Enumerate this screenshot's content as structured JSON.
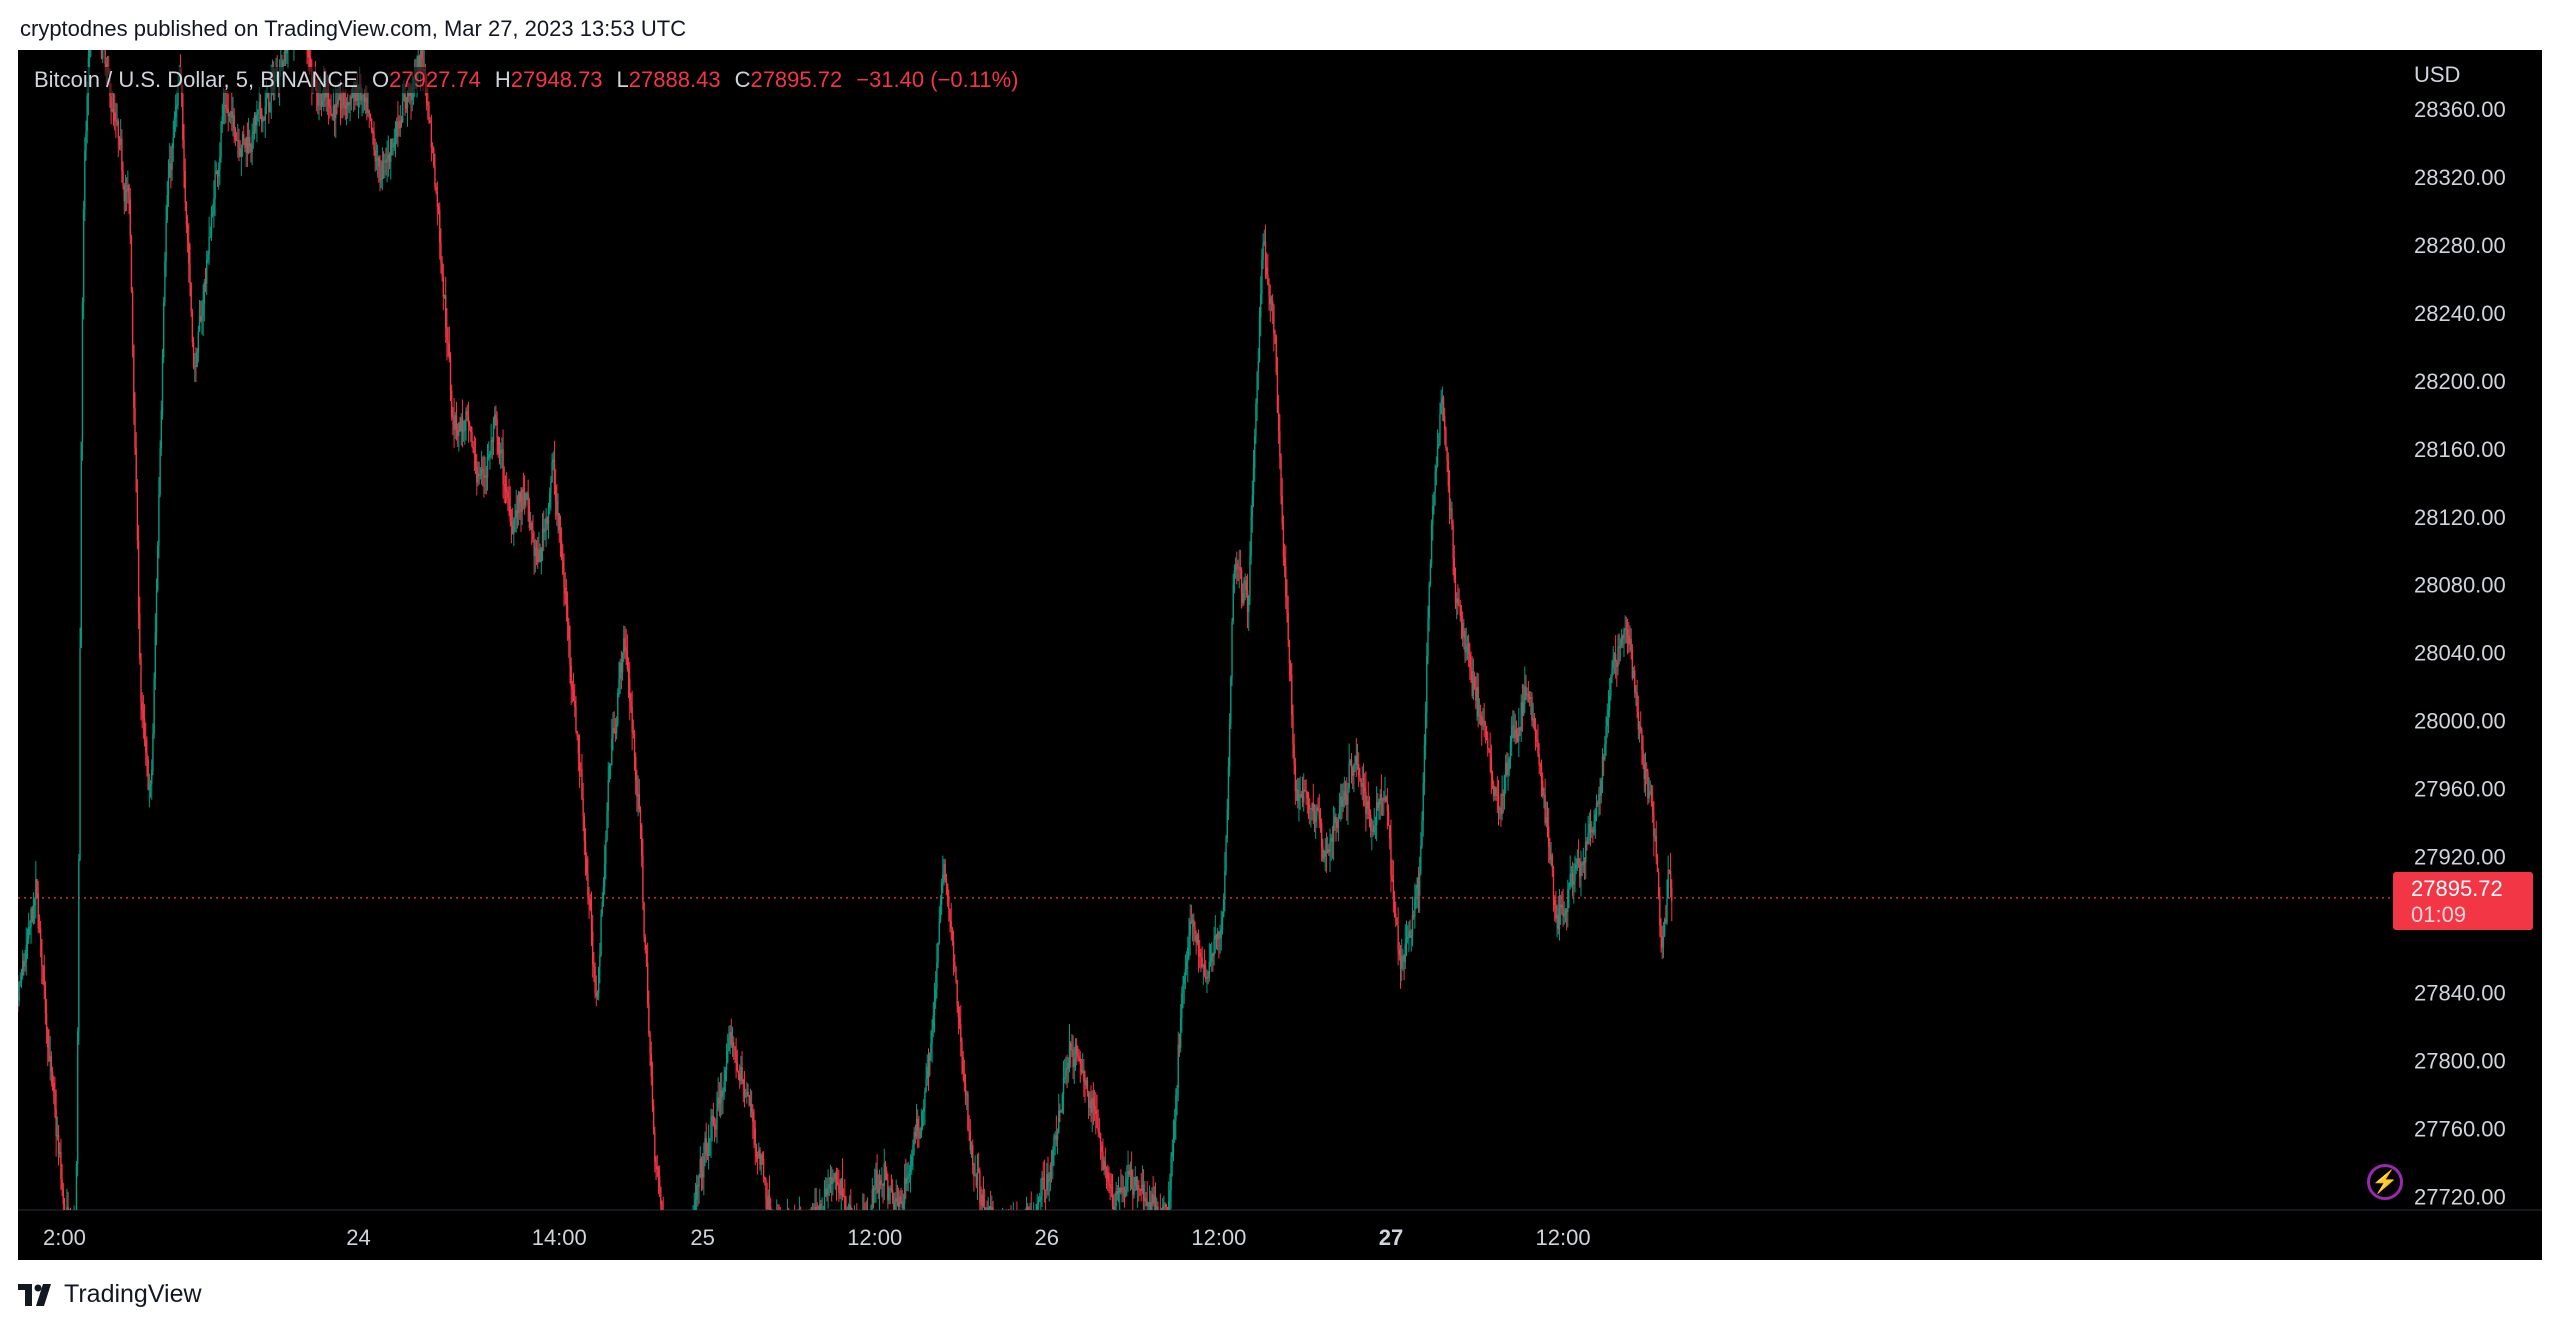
{
  "publisher": "cryptodnes published on TradingView.com, Mar 27, 2023 13:53 UTC",
  "legend": {
    "symbol": "Bitcoin / U.S. Dollar, 5, BINANCE",
    "o_label": "O",
    "o_value": "27927.74",
    "h_label": "H",
    "h_value": "27948.73",
    "l_label": "L",
    "l_value": "27888.43",
    "c_label": "C",
    "c_value": "27895.72",
    "change": "−31.40 (−0.11%)"
  },
  "axis": {
    "currency": "USD"
  },
  "last_price": {
    "value": "27895.72",
    "countdown": "01:09"
  },
  "brand": "TradingView",
  "colors": {
    "up": "#089981",
    "down": "#f23645",
    "background": "#000000",
    "text": "#d1d4dc"
  },
  "chart_data": {
    "type": "candlestick",
    "interval_minutes": 5,
    "y_axis": {
      "ticks": [
        28360,
        28320,
        28280,
        28240,
        28200,
        28160,
        28120,
        28080,
        28040,
        28000,
        27960,
        27920,
        27840,
        27800,
        27760,
        27720
      ],
      "ylim": [
        27712,
        28390
      ],
      "tick_labels": [
        "28360.00",
        "28320.00",
        "28280.00",
        "28240.00",
        "28200.00",
        "28160.00",
        "28120.00",
        "28080.00",
        "28040.00",
        "28000.00",
        "27960.00",
        "27920.00",
        "27840.00",
        "27800.00",
        "27760.00",
        "27720.00"
      ]
    },
    "x_axis": {
      "tick_labels": [
        "2:00",
        "24",
        "14:00",
        "25",
        "12:00",
        "26",
        "12:00",
        "27",
        "12:00"
      ],
      "tick_hours": [
        2,
        24,
        38,
        48,
        60,
        72,
        84,
        96,
        108
      ]
    },
    "last_price": 27895.72,
    "series": [
      {
        "t": -0.5,
        "p": 27800
      },
      {
        "t": 1.5,
        "p": 27900
      },
      {
        "t": 2.5,
        "p": 27790
      },
      {
        "t": 3.5,
        "p": 27705
      },
      {
        "t": 4.3,
        "p": 27700
      },
      {
        "t": 4.7,
        "p": 28300
      },
      {
        "t": 5.3,
        "p": 28420
      },
      {
        "t": 6,
        "p": 28400
      },
      {
        "t": 7,
        "p": 28350
      },
      {
        "t": 8,
        "p": 28300
      },
      {
        "t": 8.8,
        "p": 28000
      },
      {
        "t": 9.5,
        "p": 27950
      },
      {
        "t": 10.5,
        "p": 28300
      },
      {
        "t": 11.5,
        "p": 28380
      },
      {
        "t": 12.5,
        "p": 28200
      },
      {
        "t": 13.5,
        "p": 28280
      },
      {
        "t": 14.5,
        "p": 28360
      },
      {
        "t": 16,
        "p": 28340
      },
      {
        "t": 17.5,
        "p": 28360
      },
      {
        "t": 19,
        "p": 28400
      },
      {
        "t": 20,
        "p": 28420
      },
      {
        "t": 21,
        "p": 28370
      },
      {
        "t": 22.5,
        "p": 28360
      },
      {
        "t": 24,
        "p": 28370
      },
      {
        "t": 25.5,
        "p": 28320
      },
      {
        "t": 27,
        "p": 28360
      },
      {
        "t": 28.5,
        "p": 28390
      },
      {
        "t": 29.5,
        "p": 28300
      },
      {
        "t": 30.5,
        "p": 28180
      },
      {
        "t": 31.5,
        "p": 28170
      },
      {
        "t": 32.5,
        "p": 28140
      },
      {
        "t": 33.5,
        "p": 28170
      },
      {
        "t": 34.5,
        "p": 28120
      },
      {
        "t": 35.5,
        "p": 28130
      },
      {
        "t": 36.5,
        "p": 28090
      },
      {
        "t": 37.5,
        "p": 28150
      },
      {
        "t": 38.5,
        "p": 28060
      },
      {
        "t": 39.5,
        "p": 27960
      },
      {
        "t": 40.5,
        "p": 27830
      },
      {
        "t": 41.5,
        "p": 27980
      },
      {
        "t": 42.5,
        "p": 28050
      },
      {
        "t": 43.5,
        "p": 27950
      },
      {
        "t": 44.5,
        "p": 27760
      },
      {
        "t": 45.2,
        "p": 27700
      },
      {
        "t": 47,
        "p": 27690
      },
      {
        "t": 48,
        "p": 27740
      },
      {
        "t": 49,
        "p": 27770
      },
      {
        "t": 50,
        "p": 27810
      },
      {
        "t": 51,
        "p": 27780
      },
      {
        "t": 52,
        "p": 27740
      },
      {
        "t": 53,
        "p": 27700
      },
      {
        "t": 55,
        "p": 27695
      },
      {
        "t": 57,
        "p": 27730
      },
      {
        "t": 59,
        "p": 27700
      },
      {
        "t": 60.5,
        "p": 27735
      },
      {
        "t": 61.5,
        "p": 27710
      },
      {
        "t": 63,
        "p": 27760
      },
      {
        "t": 64,
        "p": 27820
      },
      {
        "t": 64.8,
        "p": 27920
      },
      {
        "t": 65.5,
        "p": 27850
      },
      {
        "t": 66.5,
        "p": 27760
      },
      {
        "t": 67.5,
        "p": 27710
      },
      {
        "t": 69,
        "p": 27700
      },
      {
        "t": 71,
        "p": 27700
      },
      {
        "t": 72.5,
        "p": 27750
      },
      {
        "t": 73.5,
        "p": 27810
      },
      {
        "t": 74.5,
        "p": 27790
      },
      {
        "t": 75.5,
        "p": 27760
      },
      {
        "t": 76.5,
        "p": 27720
      },
      {
        "t": 78,
        "p": 27730
      },
      {
        "t": 79.5,
        "p": 27710
      },
      {
        "t": 80.5,
        "p": 27720
      },
      {
        "t": 81.3,
        "p": 27830
      },
      {
        "t": 82,
        "p": 27880
      },
      {
        "t": 83,
        "p": 27850
      },
      {
        "t": 84.3,
        "p": 27890
      },
      {
        "t": 85,
        "p": 28100
      },
      {
        "t": 86,
        "p": 28070
      },
      {
        "t": 87,
        "p": 28280
      },
      {
        "t": 87.8,
        "p": 28230
      },
      {
        "t": 88.5,
        "p": 28090
      },
      {
        "t": 89.3,
        "p": 27960
      },
      {
        "t": 90.5,
        "p": 27950
      },
      {
        "t": 91.5,
        "p": 27920
      },
      {
        "t": 92.5,
        "p": 27950
      },
      {
        "t": 93.5,
        "p": 27980
      },
      {
        "t": 94.5,
        "p": 27940
      },
      {
        "t": 95.5,
        "p": 27960
      },
      {
        "t": 96.5,
        "p": 27860
      },
      {
        "t": 97.3,
        "p": 27880
      },
      {
        "t": 98,
        "p": 27910
      },
      {
        "t": 98.7,
        "p": 28100
      },
      {
        "t": 99.5,
        "p": 28200
      },
      {
        "t": 100.3,
        "p": 28090
      },
      {
        "t": 101.2,
        "p": 28040
      },
      {
        "t": 102.5,
        "p": 27990
      },
      {
        "t": 103.5,
        "p": 27950
      },
      {
        "t": 104.5,
        "p": 27990
      },
      {
        "t": 105.5,
        "p": 28020
      },
      {
        "t": 106.5,
        "p": 27960
      },
      {
        "t": 107.5,
        "p": 27880
      },
      {
        "t": 108.5,
        "p": 27900
      },
      {
        "t": 109.5,
        "p": 27920
      },
      {
        "t": 110.5,
        "p": 27950
      },
      {
        "t": 111.5,
        "p": 28040
      },
      {
        "t": 112.5,
        "p": 28050
      },
      {
        "t": 113.5,
        "p": 27980
      },
      {
        "t": 114.3,
        "p": 27940
      },
      {
        "t": 114.8,
        "p": 27860
      },
      {
        "t": 115.3,
        "p": 27910
      },
      {
        "t": 115.6,
        "p": 27895.72
      }
    ]
  }
}
